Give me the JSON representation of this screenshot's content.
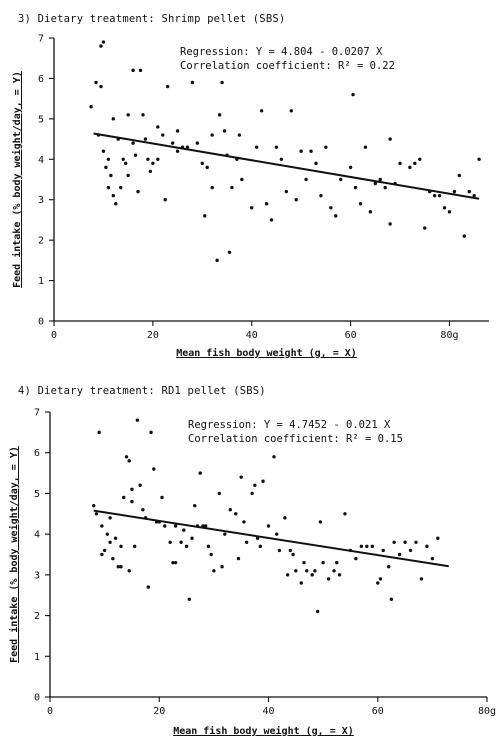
{
  "chart_data": [
    {
      "type": "scatter",
      "title": "3) Dietary treatment: Shrimp pellet (SBS)",
      "xlabel": "Mean fish body weight (g, = X)",
      "ylabel": "Feed intake (% body weight/day, = Y)",
      "xlim": [
        0,
        88
      ],
      "ylim": [
        0,
        7
      ],
      "x_ticks": [
        "0",
        "20",
        "40",
        "60",
        "80g"
      ],
      "y_ticks": [
        "0",
        "1",
        "2",
        "3",
        "4",
        "5",
        "6",
        "7"
      ],
      "annotations": [
        "Regression: Y = 4.804 - 0.0207 X",
        "Correlation coefficient: R² = 0.22"
      ],
      "regression": {
        "intercept": 4.804,
        "slope": -0.0207,
        "x_range": [
          8,
          86
        ]
      },
      "points": [
        [
          7.5,
          5.3
        ],
        [
          8.5,
          5.9
        ],
        [
          9.5,
          5.8
        ],
        [
          9.5,
          6.8
        ],
        [
          10,
          6.9
        ],
        [
          9,
          4.6
        ],
        [
          10,
          4.2
        ],
        [
          11,
          4.0
        ],
        [
          10.5,
          3.8
        ],
        [
          11.5,
          3.6
        ],
        [
          11,
          3.3
        ],
        [
          12,
          3.1
        ],
        [
          12.5,
          2.9
        ],
        [
          12,
          5.0
        ],
        [
          13,
          4.5
        ],
        [
          13.5,
          3.3
        ],
        [
          14,
          4.0
        ],
        [
          14.5,
          3.9
        ],
        [
          15,
          3.6
        ],
        [
          15,
          5.1
        ],
        [
          16,
          6.2
        ],
        [
          16,
          4.4
        ],
        [
          16.5,
          4.1
        ],
        [
          17,
          3.2
        ],
        [
          17.5,
          6.2
        ],
        [
          18,
          5.1
        ],
        [
          18.5,
          4.5
        ],
        [
          19,
          4.0
        ],
        [
          19.5,
          3.7
        ],
        [
          20,
          3.9
        ],
        [
          21,
          4.0
        ],
        [
          21,
          4.8
        ],
        [
          22,
          4.6
        ],
        [
          22.5,
          3.0
        ],
        [
          23,
          5.8
        ],
        [
          24,
          4.4
        ],
        [
          25,
          4.2
        ],
        [
          25,
          4.7
        ],
        [
          26,
          4.3
        ],
        [
          27,
          4.3
        ],
        [
          28,
          5.9
        ],
        [
          29,
          4.4
        ],
        [
          30,
          3.9
        ],
        [
          30.5,
          2.6
        ],
        [
          31,
          3.8
        ],
        [
          32,
          4.6
        ],
        [
          32,
          3.3
        ],
        [
          33,
          1.5
        ],
        [
          33.5,
          5.1
        ],
        [
          34,
          5.9
        ],
        [
          34.5,
          4.7
        ],
        [
          35,
          4.1
        ],
        [
          35.5,
          1.7
        ],
        [
          36,
          3.3
        ],
        [
          37,
          4.0
        ],
        [
          37.5,
          4.6
        ],
        [
          38,
          3.5
        ],
        [
          40,
          2.8
        ],
        [
          41,
          4.3
        ],
        [
          42,
          5.2
        ],
        [
          43,
          2.9
        ],
        [
          44,
          2.5
        ],
        [
          45,
          4.3
        ],
        [
          46,
          4.0
        ],
        [
          47,
          3.2
        ],
        [
          48,
          5.2
        ],
        [
          49,
          3.0
        ],
        [
          50,
          4.2
        ],
        [
          51,
          3.5
        ],
        [
          52,
          4.2
        ],
        [
          53,
          3.9
        ],
        [
          54,
          3.1
        ],
        [
          55,
          4.3
        ],
        [
          56,
          2.8
        ],
        [
          57,
          2.6
        ],
        [
          58,
          3.5
        ],
        [
          60,
          3.8
        ],
        [
          60.5,
          5.6
        ],
        [
          61,
          3.3
        ],
        [
          62,
          2.9
        ],
        [
          63,
          4.3
        ],
        [
          64,
          2.7
        ],
        [
          65,
          3.4
        ],
        [
          66,
          3.5
        ],
        [
          67,
          3.3
        ],
        [
          68,
          4.5
        ],
        [
          68,
          2.4
        ],
        [
          69,
          3.4
        ],
        [
          70,
          3.9
        ],
        [
          72,
          3.8
        ],
        [
          73,
          3.9
        ],
        [
          74,
          4.0
        ],
        [
          75,
          2.3
        ],
        [
          76,
          3.2
        ],
        [
          77,
          3.1
        ],
        [
          78,
          3.1
        ],
        [
          79,
          2.8
        ],
        [
          80,
          2.7
        ],
        [
          81,
          3.2
        ],
        [
          82,
          3.6
        ],
        [
          83,
          2.1
        ],
        [
          84,
          3.2
        ],
        [
          85,
          3.1
        ],
        [
          86,
          4.0
        ]
      ]
    },
    {
      "type": "scatter",
      "title": "4) Dietary treatment: RD1 pellet (SBS)",
      "xlabel": "Mean fish body weight (g, = X)",
      "ylabel": "Feed intake (% body weight/day, = Y)",
      "xlim": [
        0,
        80
      ],
      "ylim": [
        0,
        7
      ],
      "x_ticks": [
        "0",
        "20",
        "40",
        "60",
        "80g"
      ],
      "y_ticks": [
        "0",
        "1",
        "2",
        "3",
        "4",
        "5",
        "6",
        "7"
      ],
      "annotations": [
        "Regression: Y = 4.7452 - 0.021 X",
        "Correlation coefficient: R² = 0.15"
      ],
      "regression": {
        "intercept": 4.7452,
        "slope": -0.021,
        "x_range": [
          8,
          73
        ]
      },
      "points": [
        [
          8,
          4.7
        ],
        [
          8.5,
          4.5
        ],
        [
          9,
          6.5
        ],
        [
          9.5,
          4.2
        ],
        [
          9.5,
          3.5
        ],
        [
          10,
          3.6
        ],
        [
          10.5,
          4.0
        ],
        [
          11,
          3.8
        ],
        [
          11,
          4.4
        ],
        [
          11.5,
          3.4
        ],
        [
          12,
          3.9
        ],
        [
          12.5,
          3.2
        ],
        [
          13,
          3.7
        ],
        [
          13,
          3.2
        ],
        [
          13.5,
          4.9
        ],
        [
          14,
          5.9
        ],
        [
          14.5,
          5.8
        ],
        [
          14.5,
          3.1
        ],
        [
          15,
          4.8
        ],
        [
          15,
          5.1
        ],
        [
          15.5,
          3.7
        ],
        [
          16,
          6.8
        ],
        [
          16.5,
          5.2
        ],
        [
          17,
          4.6
        ],
        [
          17.5,
          4.4
        ],
        [
          18,
          2.7
        ],
        [
          18.5,
          6.5
        ],
        [
          19,
          5.6
        ],
        [
          19.5,
          4.3
        ],
        [
          20,
          4.3
        ],
        [
          20.5,
          4.9
        ],
        [
          21,
          4.2
        ],
        [
          22,
          3.8
        ],
        [
          22.5,
          3.3
        ],
        [
          23,
          4.2
        ],
        [
          23,
          3.3
        ],
        [
          24,
          3.8
        ],
        [
          24.5,
          4.1
        ],
        [
          25,
          3.7
        ],
        [
          25.5,
          2.4
        ],
        [
          26,
          3.9
        ],
        [
          26.5,
          4.7
        ],
        [
          27,
          4.2
        ],
        [
          27.5,
          5.5
        ],
        [
          28,
          4.2
        ],
        [
          28.5,
          4.2
        ],
        [
          29,
          3.7
        ],
        [
          29.5,
          3.5
        ],
        [
          30,
          3.1
        ],
        [
          31,
          5.0
        ],
        [
          31.5,
          3.2
        ],
        [
          32,
          4.0
        ],
        [
          33,
          4.6
        ],
        [
          34,
          4.5
        ],
        [
          34.5,
          3.4
        ],
        [
          35,
          5.4
        ],
        [
          35.5,
          4.3
        ],
        [
          36,
          3.8
        ],
        [
          37,
          5.0
        ],
        [
          37.5,
          5.2
        ],
        [
          38,
          3.9
        ],
        [
          38.5,
          3.7
        ],
        [
          39,
          5.3
        ],
        [
          40,
          4.2
        ],
        [
          41,
          5.9
        ],
        [
          41.5,
          4.0
        ],
        [
          42,
          3.6
        ],
        [
          43,
          4.4
        ],
        [
          43.5,
          3.0
        ],
        [
          44,
          3.6
        ],
        [
          44.5,
          3.5
        ],
        [
          45,
          3.1
        ],
        [
          46,
          2.8
        ],
        [
          46.5,
          3.3
        ],
        [
          47,
          3.1
        ],
        [
          48,
          3.0
        ],
        [
          48.5,
          3.1
        ],
        [
          49,
          2.1
        ],
        [
          49.5,
          4.3
        ],
        [
          50,
          3.3
        ],
        [
          51,
          2.9
        ],
        [
          52,
          3.1
        ],
        [
          52.5,
          3.3
        ],
        [
          53,
          3.0
        ],
        [
          54,
          4.5
        ],
        [
          55,
          3.6
        ],
        [
          56,
          3.4
        ],
        [
          57,
          3.7
        ],
        [
          58,
          3.7
        ],
        [
          59,
          3.7
        ],
        [
          60,
          2.8
        ],
        [
          60.5,
          2.9
        ],
        [
          61,
          3.6
        ],
        [
          62,
          3.2
        ],
        [
          62.5,
          2.4
        ],
        [
          63,
          3.8
        ],
        [
          64,
          3.5
        ],
        [
          65,
          3.8
        ],
        [
          66,
          3.6
        ],
        [
          67,
          3.8
        ],
        [
          68,
          2.9
        ],
        [
          69,
          3.7
        ],
        [
          70,
          3.4
        ],
        [
          71,
          3.9
        ]
      ]
    }
  ]
}
